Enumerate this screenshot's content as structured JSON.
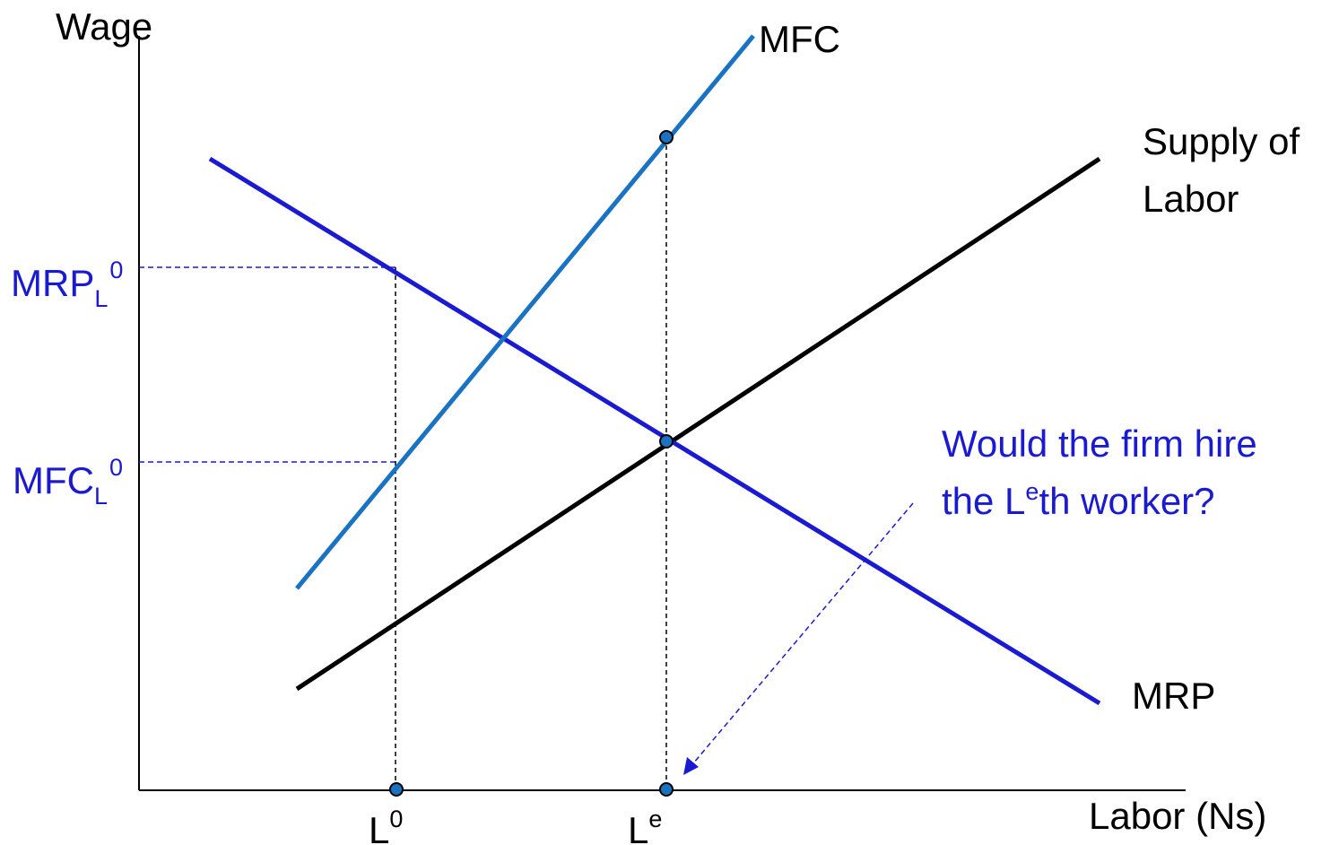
{
  "axes": {
    "y_label": "Wage",
    "x_label": "Labor (Ns)"
  },
  "curves": {
    "mfc": {
      "label": "MFC",
      "color": "#1a73c2"
    },
    "supply": {
      "label_line1": "Supply of",
      "label_line2": "Labor",
      "color": "#000000"
    },
    "mrp": {
      "label": "MRP",
      "color": "#1a1ad0"
    }
  },
  "ticks": {
    "mrp_l0": {
      "main": "MRP",
      "sub": "L",
      "sup": "0"
    },
    "mfc_l0": {
      "main": "MFC",
      "sub": "L",
      "sup": "0"
    },
    "l0": {
      "main": "L",
      "sup": "0"
    },
    "le": {
      "main": "L",
      "sup": "e"
    }
  },
  "annotation": {
    "line1": "Would the firm hire",
    "line2_prefix": "the L",
    "line2_sup": "e",
    "line2_suffix": "th worker?"
  },
  "colors": {
    "axis": "#000000",
    "blue_text": "#1a1ad0",
    "marker_fill": "#1a73c2",
    "guide": "#000000",
    "blue_guide": "#1a1ad0"
  }
}
